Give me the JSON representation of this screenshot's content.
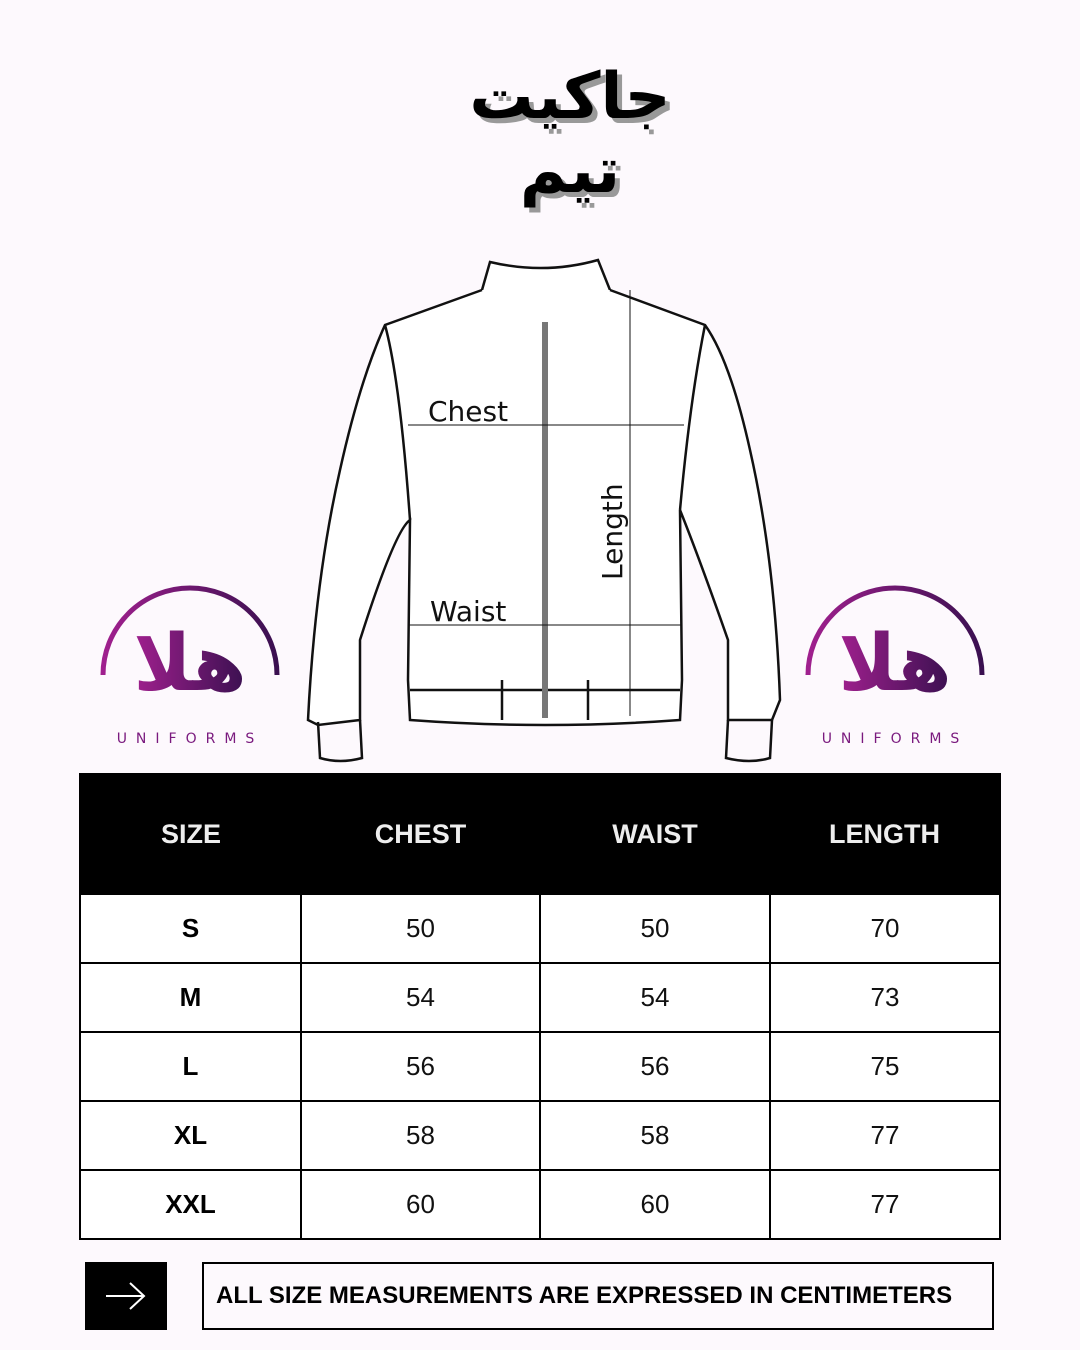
{
  "title": "جاكيت تيم",
  "diagram": {
    "chest": "Chest",
    "waist": "Waist",
    "length": "Length"
  },
  "logo": {
    "arabic": "هلا",
    "text": "UNIFORMS",
    "color": "#7a1a7e"
  },
  "table": {
    "headers": [
      "SIZE",
      "CHEST",
      "WAIST",
      "LENGTH"
    ],
    "rows": [
      [
        "S",
        "50",
        "50",
        "70"
      ],
      [
        "M",
        "54",
        "54",
        "73"
      ],
      [
        "L",
        "56",
        "56",
        "75"
      ],
      [
        "XL",
        "58",
        "58",
        "77"
      ],
      [
        "XXL",
        "60",
        "60",
        "77"
      ]
    ]
  },
  "footer": {
    "icon": "arrow-right-icon",
    "note": "ALL SIZE MEASUREMENTS ARE EXPRESSED IN CENTIMETERS"
  }
}
